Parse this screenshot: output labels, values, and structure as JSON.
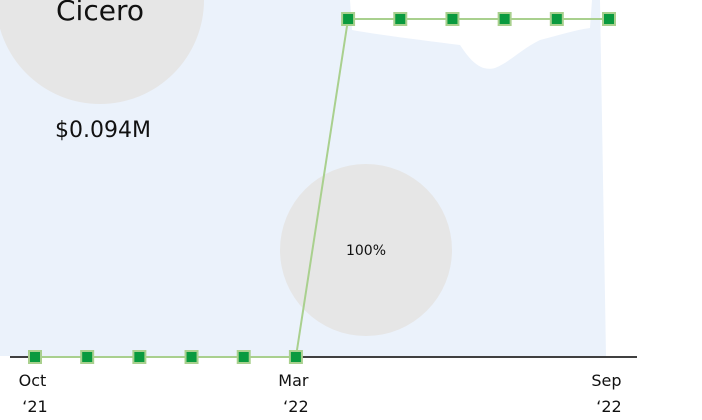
{
  "chart_data": {
    "type": "line",
    "title": "Cicero",
    "categories": [
      "Oct ‘21",
      null,
      null,
      null,
      null,
      "Mar ‘22",
      null,
      null,
      null,
      null,
      null,
      "Sep ‘22"
    ],
    "series": [
      {
        "name": null,
        "color": "#0a9a3f",
        "line_color": "#a9d08e",
        "values": [
          0,
          0,
          0,
          0,
          0,
          0,
          100,
          100,
          100,
          100,
          100,
          100
        ]
      }
    ],
    "ylim": [
      0,
      100
    ],
    "annotations": [
      {
        "text": "$0.094M"
      },
      {
        "text": "100%"
      }
    ]
  }
}
